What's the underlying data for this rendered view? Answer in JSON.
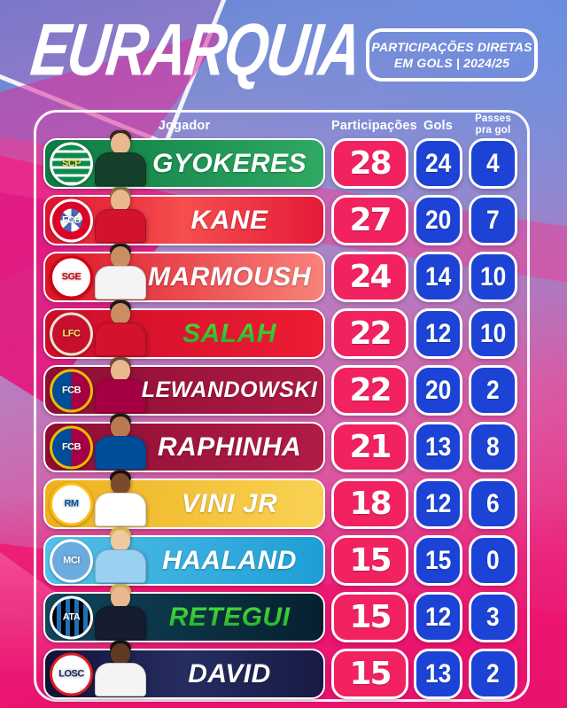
{
  "header": {
    "title": "EURARQUIA",
    "badge": {
      "line1": "PARTICIPAÇÕES DIRETAS",
      "line2": "EM GOLS | 2024/25"
    }
  },
  "columns": {
    "player": "Jogador",
    "participations": "Participações",
    "goals": "Gols",
    "assists_line1": "Passes",
    "assists_line2": "pra gol"
  },
  "colors": {
    "participations_badge": "#F2215F",
    "stat_badge": "#1C43D6",
    "badge_border": "#FFFFFF",
    "table_outline": "#FFFFFF",
    "green_name_top": "#5BEB43",
    "green_name_bottom": "#0FA01F"
  },
  "chart_data": {
    "type": "table",
    "title": "EURARQUIA — Participações diretas em gols | 2024/25",
    "columns": [
      "Jogador",
      "Participações",
      "Gols",
      "Passes pra gol"
    ],
    "rows": [
      {
        "player": "GYOKERES",
        "club": "Sporting CP",
        "participations": 28,
        "goals": 24,
        "assists": 4
      },
      {
        "player": "KANE",
        "club": "Bayern München",
        "participations": 27,
        "goals": 20,
        "assists": 7
      },
      {
        "player": "MARMOUSH",
        "club": "Eintracht Frankfurt",
        "participations": 24,
        "goals": 14,
        "assists": 10
      },
      {
        "player": "SALAH",
        "club": "Liverpool",
        "participations": 22,
        "goals": 12,
        "assists": 10
      },
      {
        "player": "LEWANDOWSKI",
        "club": "Barcelona",
        "participations": 22,
        "goals": 20,
        "assists": 2
      },
      {
        "player": "RAPHINHA",
        "club": "Barcelona",
        "participations": 21,
        "goals": 13,
        "assists": 8
      },
      {
        "player": "VINI JR",
        "club": "Real Madrid",
        "participations": 18,
        "goals": 12,
        "assists": 6
      },
      {
        "player": "HAALAND",
        "club": "Manchester City",
        "participations": 15,
        "goals": 15,
        "assists": 0
      },
      {
        "player": "RETEGUI",
        "club": "Atalanta",
        "participations": 15,
        "goals": 12,
        "assists": 3
      },
      {
        "player": "DAVID",
        "club": "Lille",
        "participations": 15,
        "goals": 13,
        "assists": 2
      }
    ]
  },
  "row_styles": [
    {
      "club_initials": "SCP",
      "name_style": "white",
      "bar": [
        "#0E7A44",
        "#2FA963"
      ],
      "crest": {
        "style": "h-stripes",
        "bg": "#0C8A4C",
        "stripe": "#FFFFFF",
        "ring": "#FFFFFF",
        "text_color": "#FFD84D"
      },
      "figure": {
        "jersey": "#15402B",
        "skin": "#E9B88E",
        "hair": "#33261B"
      }
    },
    {
      "club_initials": "FCB",
      "name_style": "white",
      "bar": [
        "#DD1430",
        "#F64E4E",
        "#E51A38"
      ],
      "crest": {
        "style": "checker",
        "bg": "#DC0329",
        "stripe": "#4668B2",
        "ring": "#FFFFFF",
        "text_color": "#FFFFFF"
      },
      "figure": {
        "jersey": "#D3122E",
        "skin": "#E9B88E",
        "hair": "#8A6A42"
      }
    },
    {
      "club_initials": "SGE",
      "name_style": "white",
      "bar": [
        "#DC1426",
        "#F8837B"
      ],
      "crest": {
        "style": "plain",
        "bg": "#FFFFFF",
        "ring": "#D00212",
        "text_color": "#D00212"
      },
      "figure": {
        "jersey": "#F4F4F4",
        "skin": "#C98E62",
        "hair": "#1E1914"
      }
    },
    {
      "club_initials": "LFC",
      "name_style": "green",
      "bar": [
        "#CE0D28",
        "#EE1C34"
      ],
      "crest": {
        "style": "plain",
        "bg": "#C8102E",
        "ring": "#EDE5D2",
        "text_color": "#F6EB61"
      },
      "figure": {
        "jersey": "#D3122E",
        "skin": "#C98E62",
        "hair": "#1E1914"
      }
    },
    {
      "club_initials": "FCB",
      "name_style": "white",
      "bar": [
        "#8E0E33",
        "#AD1A44"
      ],
      "crest": {
        "style": "v-split",
        "bg": "#A50044",
        "stripe": "#004D98",
        "ring": "#EDBB00",
        "text_color": "#FFFFFF"
      },
      "figure": {
        "jersey": "#A50044",
        "skin": "#E9B88E",
        "hair": "#6B4E35"
      }
    },
    {
      "club_initials": "FCB",
      "name_style": "white",
      "bar": [
        "#8E0E33",
        "#B01C46"
      ],
      "crest": {
        "style": "v-split",
        "bg": "#A50044",
        "stripe": "#004D98",
        "ring": "#EDBB00",
        "text_color": "#FFFFFF"
      },
      "figure": {
        "jersey": "#004D98",
        "skin": "#B97A52",
        "hair": "#1E1914"
      }
    },
    {
      "club_initials": "RM",
      "name_style": "white",
      "bar": [
        "#EEB11E",
        "#F9D254"
      ],
      "crest": {
        "style": "plain",
        "bg": "#FFFFFF",
        "ring": "#FEBE10",
        "text_color": "#00529F"
      },
      "figure": {
        "jersey": "#FFFFFF",
        "skin": "#7A4A2D",
        "hair": "#14100D"
      }
    },
    {
      "club_initials": "MCI",
      "name_style": "white",
      "bar": [
        "#53C0E8",
        "#1E9ED6"
      ],
      "crest": {
        "style": "plain",
        "bg": "#6CABDD",
        "ring": "#FFFFFF",
        "text_color": "#FFFFFF"
      },
      "figure": {
        "jersey": "#9BD1F0",
        "skin": "#F0C9A0",
        "hair": "#D9B24A"
      }
    },
    {
      "club_initials": "ATA",
      "name_style": "green",
      "bar": [
        "#12455C",
        "#06202E"
      ],
      "crest": {
        "style": "v-stripes",
        "bg": "#000000",
        "stripe": "#1E71B8",
        "ring": "#FFFFFF",
        "text_color": "#FFFFFF"
      },
      "figure": {
        "jersey": "#141C2E",
        "skin": "#E9B88E",
        "hair": "#CBA85A"
      }
    },
    {
      "club_initials": "LOSC",
      "name_style": "white",
      "bar": [
        "#111239",
        "#262D61",
        "#171A44"
      ],
      "crest": {
        "style": "plain",
        "bg": "#FFFFFF",
        "ring": "#DD1A22",
        "text_color": "#1A2A5C"
      },
      "figure": {
        "jersey": "#F4F4F4",
        "skin": "#5F3A22",
        "hair": "#14100D"
      }
    }
  ]
}
